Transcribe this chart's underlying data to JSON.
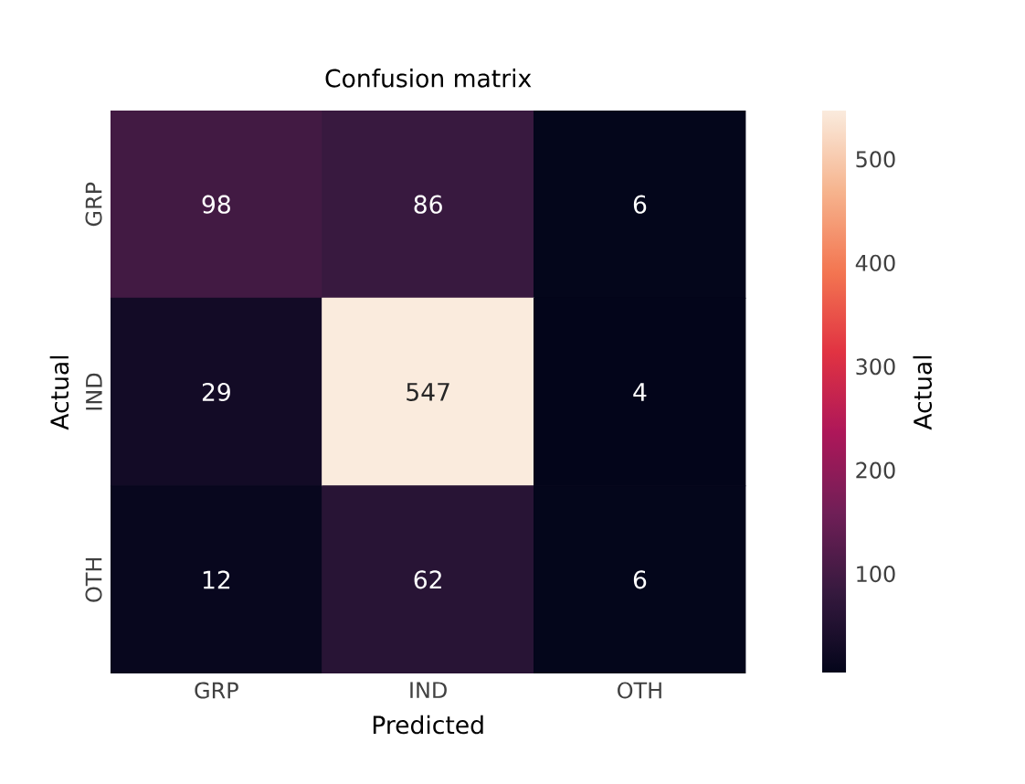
{
  "chart_data": {
    "type": "heatmap",
    "title": "Confusion matrix",
    "xlabel": "Predicted",
    "ylabel": "Actual",
    "clabel": "Actual",
    "categories": [
      "GRP",
      "IND",
      "OTH"
    ],
    "y_categories": [
      "GRP",
      "IND",
      "OTH"
    ],
    "cells": [
      [
        98,
        86,
        6
      ],
      [
        29,
        547,
        4
      ],
      [
        12,
        62,
        6
      ]
    ],
    "data_labels": true,
    "clim": [
      4,
      547
    ],
    "cticks": [
      100,
      200,
      300,
      400,
      500
    ]
  }
}
